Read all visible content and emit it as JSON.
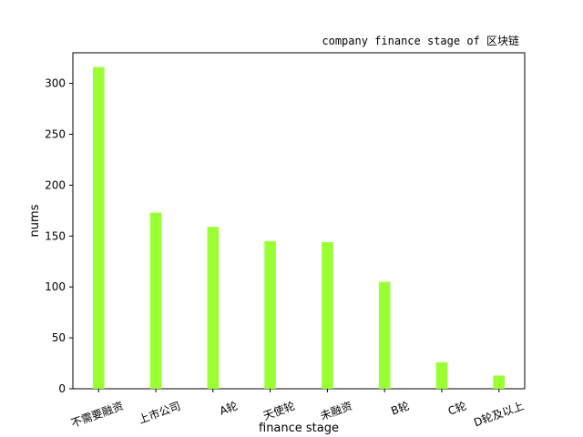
{
  "chart_data": {
    "type": "bar",
    "title": "company finance stage of 区块链",
    "xlabel": "finance stage",
    "ylabel": "nums",
    "categories": [
      "不需要融资",
      "上市公司",
      "A轮",
      "天使轮",
      "未融资",
      "B轮",
      "C轮",
      "D轮及以上"
    ],
    "values": [
      316,
      173,
      159,
      145,
      144,
      105,
      26,
      13
    ],
    "ylim": [
      0,
      330
    ],
    "yticks": [
      0,
      50,
      100,
      150,
      200,
      250,
      300
    ],
    "bar_color": "#99ff33",
    "grid": false,
    "legend": "none"
  }
}
